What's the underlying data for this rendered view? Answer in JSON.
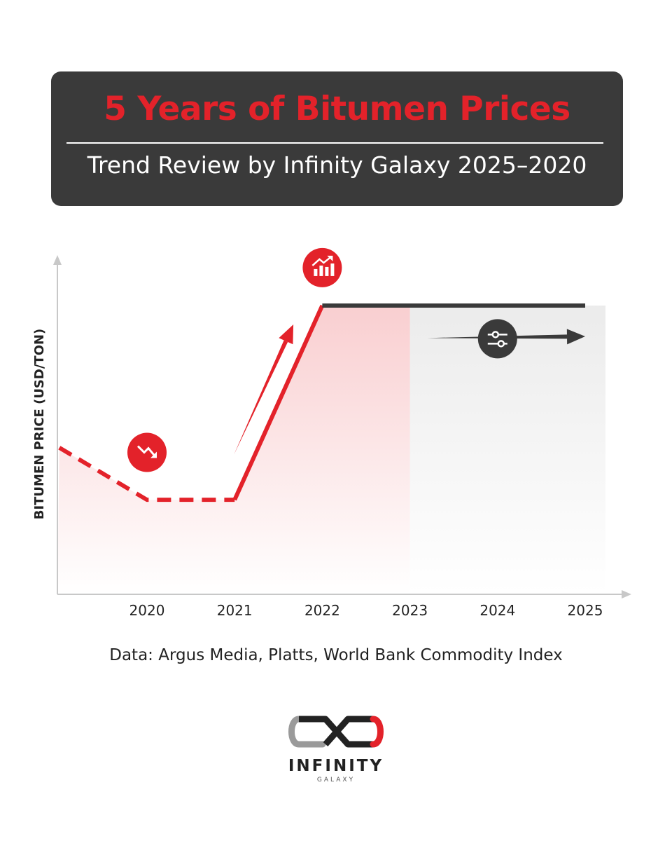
{
  "header": {
    "title": "5 Years of Bitumen Prices",
    "subtitle": "Trend Review by Infinity Galaxy 2025–2020"
  },
  "chart_data": {
    "type": "line",
    "title": "5 Years of Bitumen Prices",
    "subtitle": "Trend Review by Infinity Galaxy 2025–2020",
    "xlabel": "",
    "ylabel": "BITUMEN PRICE (USD/TON)",
    "categories": [
      "2020",
      "2021",
      "2022",
      "2023",
      "2024",
      "2025"
    ],
    "x_range": [
      2019,
      2025
    ],
    "y_range": [
      0,
      100
    ],
    "series": [
      {
        "name": "",
        "style": "dashed",
        "color": "#e3222a",
        "points": [
          [
            2019,
            40
          ],
          [
            2020,
            18
          ],
          [
            2021,
            18
          ]
        ]
      },
      {
        "name": "",
        "style": "solid",
        "color": "#e3222a",
        "points": [
          [
            2021,
            18
          ],
          [
            2022,
            100
          ]
        ]
      },
      {
        "name": "",
        "style": "solid",
        "color": "#3a3a3a",
        "points": [
          [
            2022,
            100
          ],
          [
            2025,
            100
          ]
        ]
      }
    ],
    "annotations": [
      {
        "type": "icon",
        "icon": "trend-down-icon",
        "x": 2020,
        "y": 38
      },
      {
        "type": "icon",
        "icon": "growth-chart-icon",
        "x": 2022,
        "y": 116
      },
      {
        "type": "icon",
        "icon": "sliders-icon",
        "x": 2024,
        "y": 86
      },
      {
        "type": "arrow",
        "color": "#e3222a",
        "from": [
          2021,
          37
        ],
        "to": [
          2021.67,
          92
        ]
      },
      {
        "type": "arrow",
        "color": "#3a3a3a",
        "from": [
          2023.2,
          86
        ],
        "to": [
          2025,
          87
        ]
      }
    ],
    "grid": false,
    "legend": "none"
  },
  "source": "Data: Argus Media, Platts, World Bank Commodity Index",
  "brand": {
    "name": "INFINITY",
    "sub": "GALAXY"
  },
  "colors": {
    "accent": "#e3222a",
    "dark": "#3a3a3a",
    "axis": "#c8c8c8"
  }
}
